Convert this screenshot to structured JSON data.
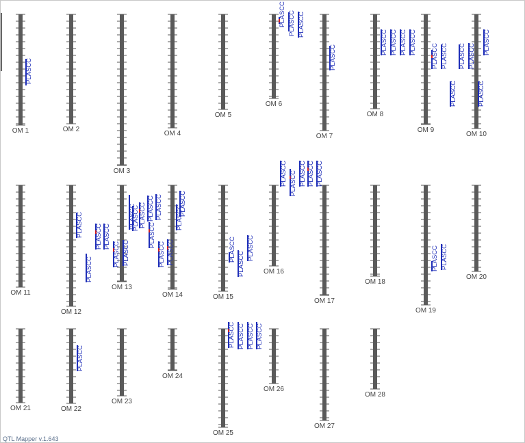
{
  "app": {
    "footer": "QTL Mapper v.1.643"
  },
  "colors": {
    "chromosome": "#5a5a5a",
    "qtl_label": "#1f2fb8",
    "qtl_peak": "#d42020",
    "chrom_label": "#444444"
  },
  "qtl_trait": "PLASCC",
  "chromosomes": [
    {
      "label": "OM 1"
    },
    {
      "label": "OM 2"
    },
    {
      "label": "OM 3"
    },
    {
      "label": "OM 4"
    },
    {
      "label": "OM 5"
    },
    {
      "label": "OM 6"
    },
    {
      "label": "OM 7"
    },
    {
      "label": "OM 8"
    },
    {
      "label": "OM 9"
    },
    {
      "label": "OM 10"
    },
    {
      "label": "OM 11"
    },
    {
      "label": "OM 12"
    },
    {
      "label": "OM 13"
    },
    {
      "label": "OM 14"
    },
    {
      "label": "OM 15"
    },
    {
      "label": "OM 16"
    },
    {
      "label": "OM 17"
    },
    {
      "label": "OM 18"
    },
    {
      "label": "OM 19"
    },
    {
      "label": "OM 20"
    },
    {
      "label": "OM 21"
    },
    {
      "label": "OM 22"
    },
    {
      "label": "OM 23"
    },
    {
      "label": "OM 24"
    },
    {
      "label": "OM 25"
    },
    {
      "label": "OM 26"
    },
    {
      "label": "OM 27"
    },
    {
      "label": "OM 28"
    }
  ],
  "qtls": [
    {
      "chrom": "OM 1",
      "label": "PLASCC"
    },
    {
      "chrom": "OM 6",
      "label": "PLASCC"
    },
    {
      "chrom": "OM 6",
      "label": "PLASCC"
    },
    {
      "chrom": "OM 6",
      "label": "PLASCC"
    },
    {
      "chrom": "OM 7",
      "label": "PLASCC"
    },
    {
      "chrom": "OM 8",
      "label": "PLASCC"
    },
    {
      "chrom": "OM 8",
      "label": "PLASCC"
    },
    {
      "chrom": "OM 8",
      "label": "PLASCC"
    },
    {
      "chrom": "OM 8",
      "label": "PLASCC"
    },
    {
      "chrom": "OM 9",
      "label": "PLASCC"
    },
    {
      "chrom": "OM 9",
      "label": "PLASCC"
    },
    {
      "chrom": "OM 9",
      "label": "PLASCC"
    },
    {
      "chrom": "OM 10",
      "label": "PLASCC"
    },
    {
      "chrom": "OM 10",
      "label": "PLASCC"
    },
    {
      "chrom": "OM 10",
      "label": "PLASCC"
    },
    {
      "chrom": "OM 10",
      "label": "PLASCC"
    },
    {
      "chrom": "OM 12",
      "label": "PLASCC"
    },
    {
      "chrom": "OM 12",
      "label": "PLASCC"
    },
    {
      "chrom": "OM 12",
      "label": "PLASCC"
    },
    {
      "chrom": "OM 12",
      "label": "PLASCC"
    },
    {
      "chrom": "OM 13",
      "label": "PLASCC"
    },
    {
      "chrom": "OM 13",
      "label": "PLASCC"
    },
    {
      "chrom": "OM 13",
      "label": "PLASCC"
    },
    {
      "chrom": "OM 13",
      "label": "PLASCC"
    },
    {
      "chrom": "OM 13",
      "label": "PLASCC"
    },
    {
      "chrom": "OM 13",
      "label": "PLASCC"
    },
    {
      "chrom": "OM 13",
      "label": "PLASCC"
    },
    {
      "chrom": "OM 13",
      "label": "PLASCC"
    },
    {
      "chrom": "OM 13",
      "label": "PLASCC"
    },
    {
      "chrom": "OM 14",
      "label": "PLASCC"
    },
    {
      "chrom": "OM 14",
      "label": "PLASCC"
    },
    {
      "chrom": "OM 14",
      "label": "PLASCC"
    },
    {
      "chrom": "OM 14",
      "label": "PLASCC"
    },
    {
      "chrom": "OM 15",
      "label": "PLASCC"
    },
    {
      "chrom": "OM 15",
      "label": "PLASCC"
    },
    {
      "chrom": "OM 15",
      "label": "PLASCC"
    },
    {
      "chrom": "OM 16",
      "label": "PLASCC"
    },
    {
      "chrom": "OM 16",
      "label": "PLASCC"
    },
    {
      "chrom": "OM 16",
      "label": "PLASCC"
    },
    {
      "chrom": "OM 16",
      "label": "PLASCC"
    },
    {
      "chrom": "OM 16",
      "label": "PLASCC"
    },
    {
      "chrom": "OM 19",
      "label": "PLASCC"
    },
    {
      "chrom": "OM 19",
      "label": "PLASCC"
    },
    {
      "chrom": "OM 22",
      "label": "PLASCC"
    },
    {
      "chrom": "OM 25",
      "label": "PLASCC"
    },
    {
      "chrom": "OM 25",
      "label": "PLASCC"
    },
    {
      "chrom": "OM 25",
      "label": "PLASCC"
    },
    {
      "chrom": "OM 25",
      "label": "PLASCC"
    }
  ]
}
